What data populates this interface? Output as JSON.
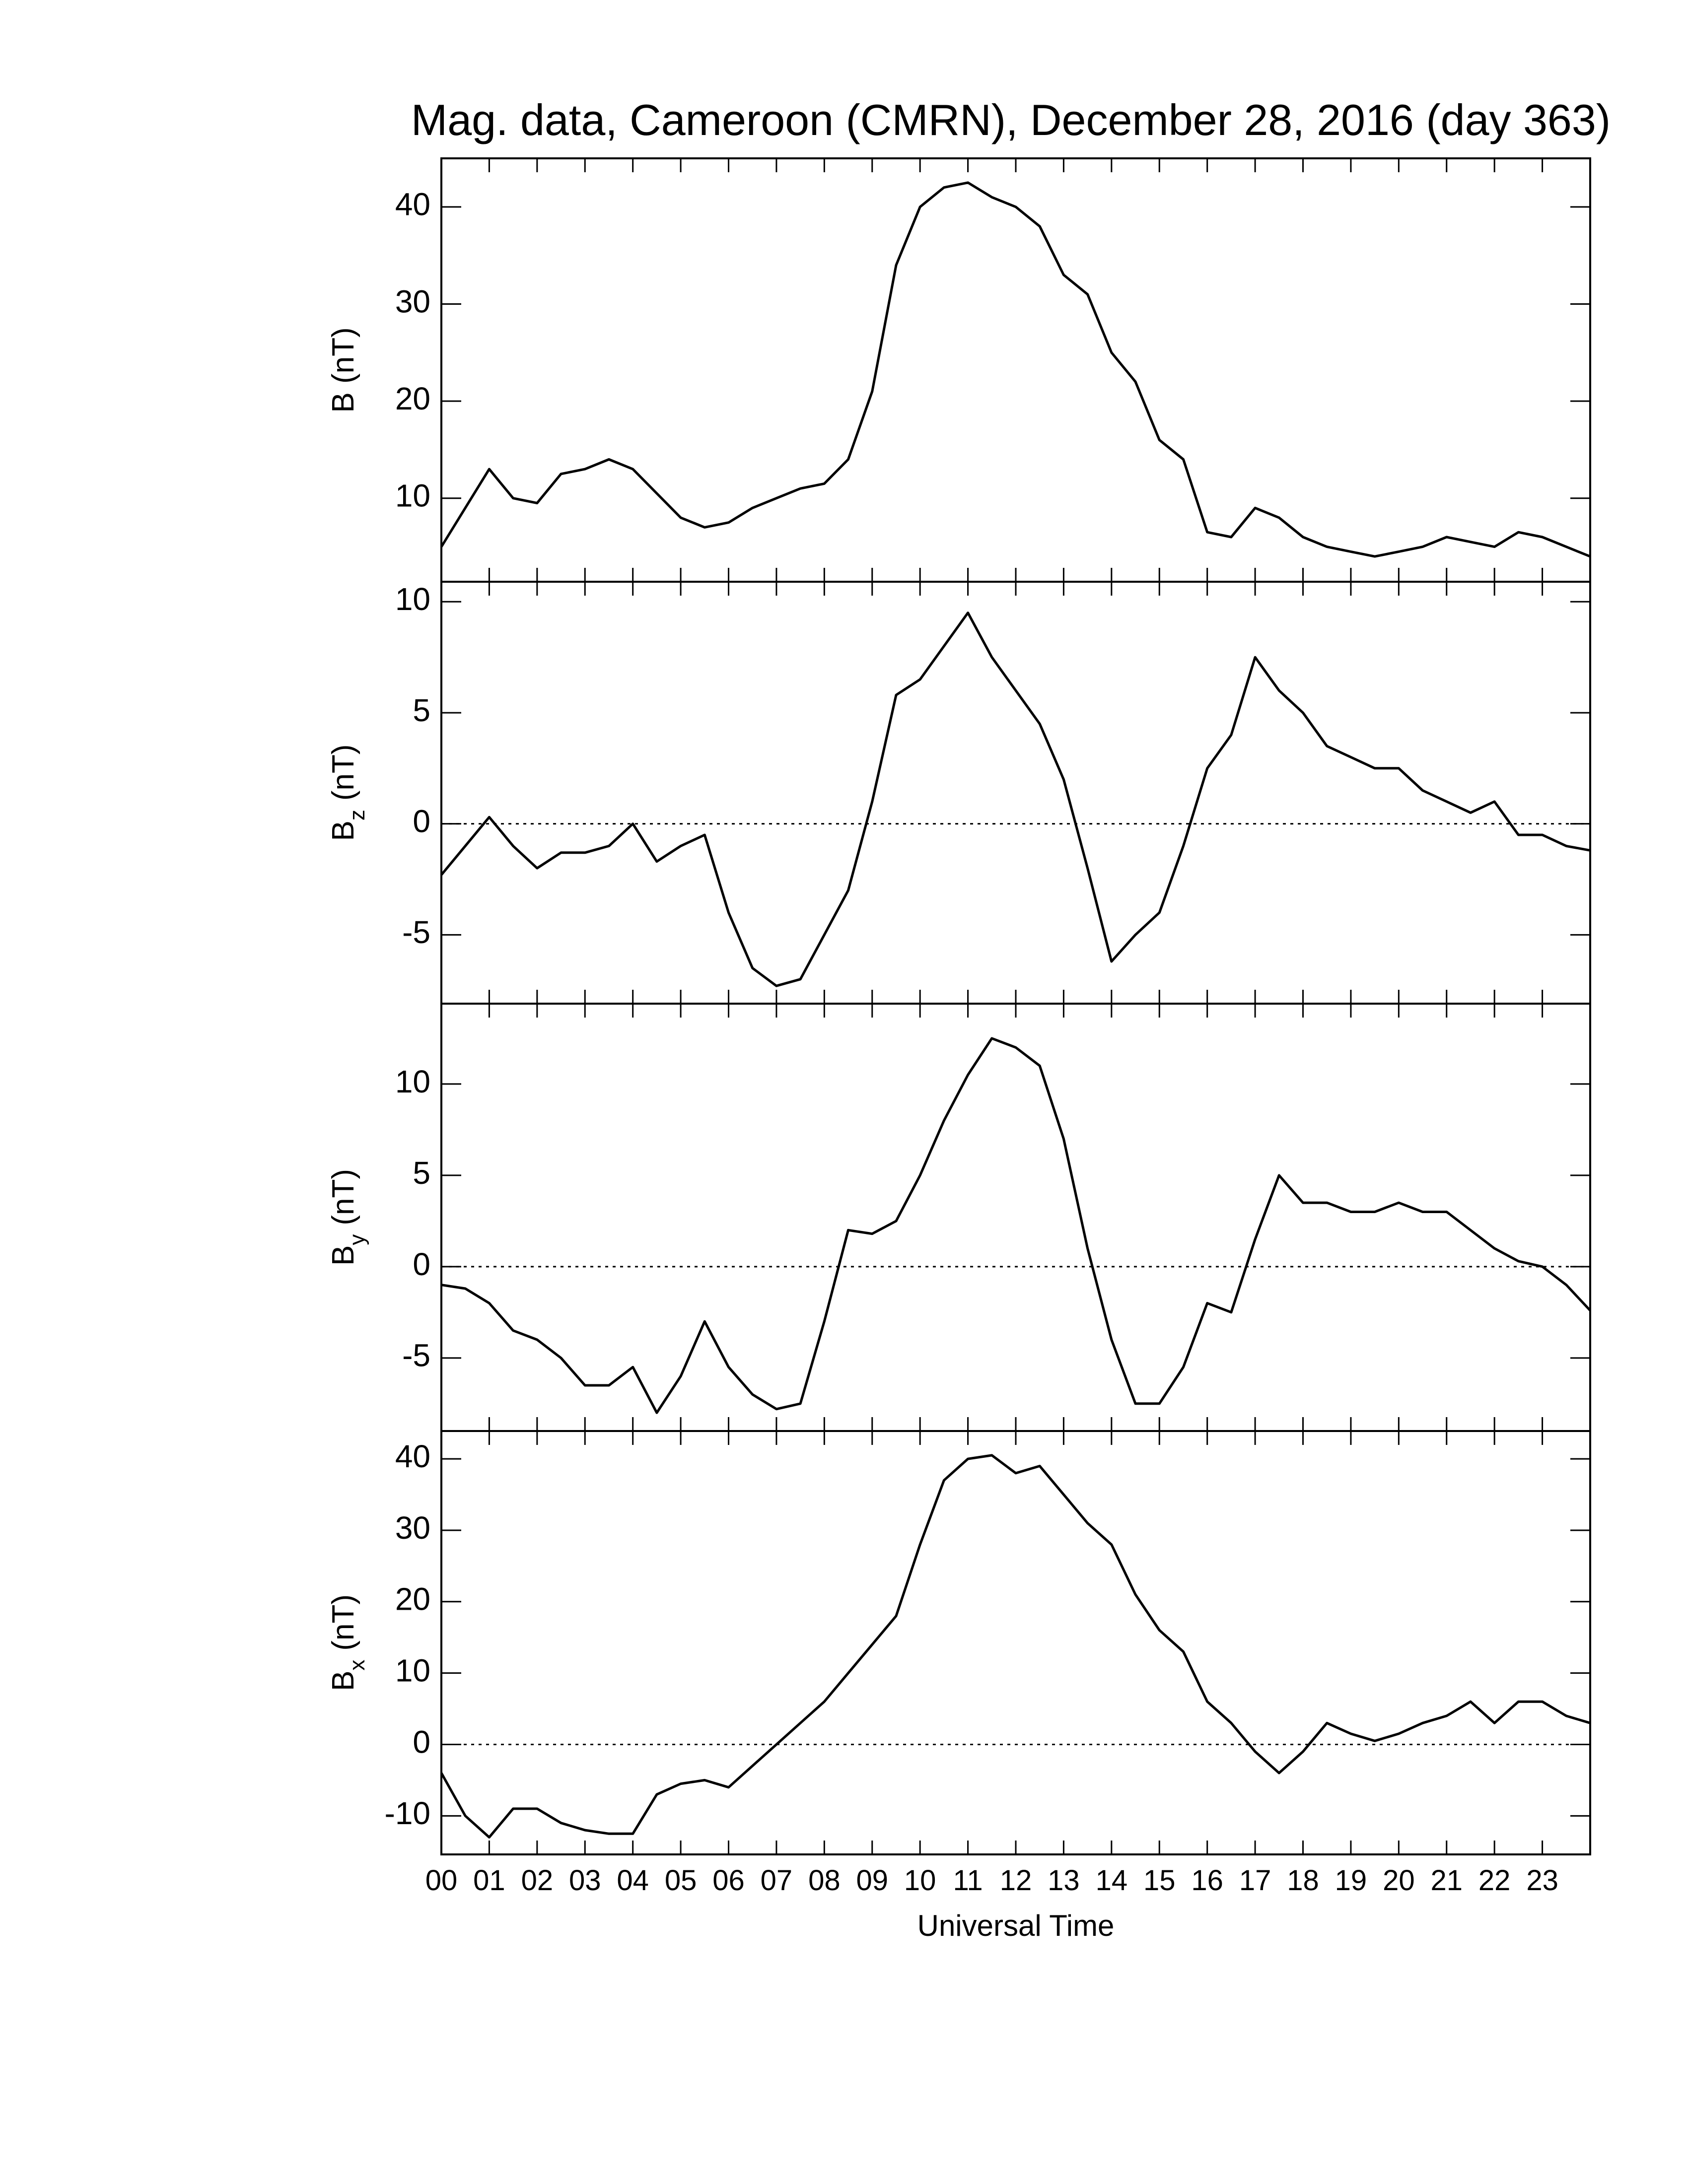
{
  "title": "Mag. data, Cameroon (CMRN), December 28, 2016 (day 363)",
  "x_axis": {
    "label": "Universal Time",
    "xlim": [
      0,
      24
    ],
    "xticks": [
      {
        "value": 0,
        "label": "00"
      },
      {
        "value": 1,
        "label": "01"
      },
      {
        "value": 2,
        "label": "02"
      },
      {
        "value": 3,
        "label": "03"
      },
      {
        "value": 4,
        "label": "04"
      },
      {
        "value": 5,
        "label": "05"
      },
      {
        "value": 6,
        "label": "06"
      },
      {
        "value": 7,
        "label": "07"
      },
      {
        "value": 8,
        "label": "08"
      },
      {
        "value": 9,
        "label": "09"
      },
      {
        "value": 10,
        "label": "10"
      },
      {
        "value": 11,
        "label": "11"
      },
      {
        "value": 12,
        "label": "12"
      },
      {
        "value": 13,
        "label": "13"
      },
      {
        "value": 14,
        "label": "14"
      },
      {
        "value": 15,
        "label": "15"
      },
      {
        "value": 16,
        "label": "16"
      },
      {
        "value": 17,
        "label": "17"
      },
      {
        "value": 18,
        "label": "18"
      },
      {
        "value": 19,
        "label": "19"
      },
      {
        "value": 20,
        "label": "20"
      },
      {
        "value": 21,
        "label": "21"
      },
      {
        "value": 22,
        "label": "22"
      },
      {
        "value": 23,
        "label": "23"
      }
    ],
    "x": [
      0,
      0.5,
      1,
      1.5,
      2,
      2.5,
      3,
      3.5,
      4,
      4.5,
      5,
      5.5,
      6,
      6.5,
      7,
      7.5,
      8,
      8.5,
      9,
      9.5,
      10,
      10.5,
      11,
      11.5,
      12,
      12.5,
      13,
      13.5,
      14,
      14.5,
      15,
      15.5,
      16,
      16.5,
      17,
      17.5,
      18,
      18.5,
      19,
      19.5,
      20,
      20.5,
      21,
      21.5,
      22,
      22.5,
      23,
      23.5,
      24
    ]
  },
  "chart_data": [
    {
      "type": "line",
      "ylabel": "B (nT)",
      "color": "#000000",
      "ylim": [
        1.4,
        45
      ],
      "yticks": [
        10,
        20,
        30,
        40
      ],
      "values": [
        5,
        9,
        13,
        10,
        9.5,
        12.5,
        13,
        14,
        13,
        10.5,
        8,
        7,
        7.5,
        9,
        10,
        11,
        11.5,
        14,
        21,
        34,
        40,
        42,
        42.5,
        41,
        40,
        38,
        33,
        31,
        25,
        22,
        16,
        14,
        6.5,
        6,
        9,
        8,
        6,
        5,
        4.5,
        4,
        4.5,
        5,
        6,
        5.5,
        5,
        6.5,
        6,
        5,
        4
      ]
    },
    {
      "type": "line",
      "ylabel": {
        "main": "B",
        "sub": "z",
        "unit": "(nT)"
      },
      "color": "#000000",
      "ylim": [
        -8.1,
        10.9
      ],
      "yticks": [
        -5,
        0,
        5,
        10
      ],
      "hline": 0,
      "values": [
        -2.3,
        -1,
        0.3,
        -1,
        -2,
        -1.3,
        -1.3,
        -1,
        0,
        -1.7,
        -1,
        -0.5,
        -4,
        -6.5,
        -7.3,
        -7,
        -5,
        -3,
        1,
        5.8,
        6.5,
        8,
        9.5,
        7.5,
        6,
        4.5,
        2,
        -2,
        -6.2,
        -5,
        -4,
        -1,
        2.5,
        4,
        7.5,
        6,
        5,
        3.5,
        3,
        2.5,
        2.5,
        1.5,
        1,
        0.5,
        1,
        -0.5,
        -0.5,
        -1,
        -1.2
      ]
    },
    {
      "type": "line",
      "ylabel": {
        "main": "B",
        "sub": "y",
        "unit": "(nT)"
      },
      "color": "#000000",
      "ylim": [
        -9,
        14.4
      ],
      "yticks": [
        -5,
        0,
        5,
        10
      ],
      "hline": 0,
      "values": [
        -1,
        -1.2,
        -2,
        -3.5,
        -4,
        -5,
        -6.5,
        -6.5,
        -5.5,
        -8,
        -6,
        -3,
        -5.5,
        -7,
        -7.8,
        -7.5,
        -3,
        2,
        1.8,
        2.5,
        5,
        8,
        10.5,
        12.5,
        12,
        11,
        7,
        1,
        -4,
        -7.5,
        -7.5,
        -5.5,
        -2,
        -2.5,
        1.5,
        5,
        3.5,
        3.5,
        3,
        3,
        3.5,
        3,
        3,
        2,
        1,
        0.3,
        0,
        -1,
        -2.4
      ]
    },
    {
      "type": "line",
      "ylabel": {
        "main": "B",
        "sub": "x",
        "unit": "(nT)"
      },
      "color": "#000000",
      "ylim": [
        -15.4,
        43.9
      ],
      "yticks": [
        -10,
        0,
        10,
        20,
        30,
        40
      ],
      "hline": 0,
      "values": [
        -4,
        -10,
        -13,
        -9,
        -9,
        -11,
        -12,
        -12.5,
        -12.5,
        -7,
        -5.5,
        -5,
        -6,
        -3,
        0,
        3,
        6,
        10,
        14,
        18,
        28,
        37,
        40,
        40.5,
        38,
        39,
        35,
        31,
        28,
        21,
        16,
        13,
        6,
        3,
        -1,
        -4,
        -1,
        3,
        1.5,
        0.5,
        1.5,
        3,
        4,
        6,
        3,
        6,
        6,
        4,
        3
      ]
    }
  ]
}
